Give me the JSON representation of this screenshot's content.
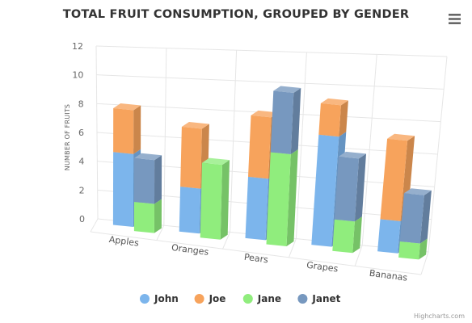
{
  "chart_data": {
    "type": "bar",
    "stacked": true,
    "three_d": true,
    "title": "TOTAL FRUIT CONSUMPTION, GROUPED BY GENDER",
    "ylabel": "NUMBER OF FRUITS",
    "xlabel": "",
    "ylim": [
      0,
      12
    ],
    "yticks": [
      0,
      2,
      4,
      6,
      8,
      10,
      12
    ],
    "grid": true,
    "legend_position": "bottom",
    "categories": [
      "Apples",
      "Oranges",
      "Pears",
      "Grapes",
      "Bananas"
    ],
    "series": [
      {
        "name": "John",
        "stack": "male",
        "color": "#7cb5ec",
        "values": [
          5,
          3,
          4,
          7,
          2
        ]
      },
      {
        "name": "Joe",
        "stack": "male",
        "color": "#f7a35c",
        "values": [
          3,
          4,
          4,
          2,
          5
        ]
      },
      {
        "name": "Jane",
        "stack": "female",
        "color": "#90ed7d",
        "values": [
          2,
          5,
          6,
          2,
          1
        ]
      },
      {
        "name": "Janet",
        "stack": "female",
        "color": "#7798bf",
        "values": [
          3,
          0,
          4,
          4,
          3
        ]
      }
    ]
  },
  "menu": {
    "icon": "hamburger-menu-icon"
  },
  "credits": "Highcharts.com"
}
